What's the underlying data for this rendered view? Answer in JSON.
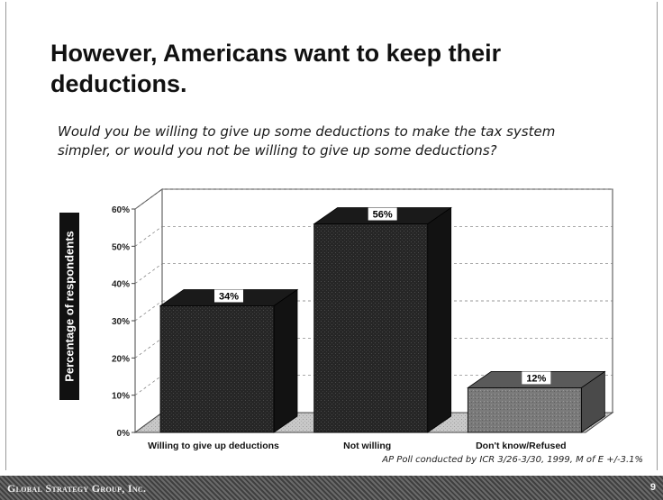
{
  "slide": {
    "title": "However, Americans want to keep their deductions.",
    "question": "Would you be willing to give up some deductions to make the tax system simpler, or would you not be willing to give up some deductions?",
    "source": "AP Poll conducted by ICR 3/26-3/30, 1999, M of E +/-3.1%",
    "footer_brand": "Global Strategy Group, Inc.",
    "page_number": "9"
  },
  "chart_data": {
    "type": "bar",
    "title": "",
    "xlabel": "",
    "ylabel": "Percentage of respondents",
    "categories": [
      "Willing to give up deductions",
      "Not willing",
      "Don't know/Refused"
    ],
    "values": [
      34,
      56,
      12
    ],
    "value_labels": [
      "34%",
      "56%",
      "12%"
    ],
    "ylim": [
      0,
      60
    ],
    "yticks": [
      0,
      10,
      20,
      30,
      40,
      50,
      60
    ],
    "ytick_labels": [
      "0%",
      "10%",
      "20%",
      "30%",
      "40%",
      "50%",
      "60%"
    ],
    "grid": true,
    "bar_colors": [
      "#2b2b2b",
      "#222222",
      "#7a7a7a"
    ],
    "style": "3d"
  }
}
